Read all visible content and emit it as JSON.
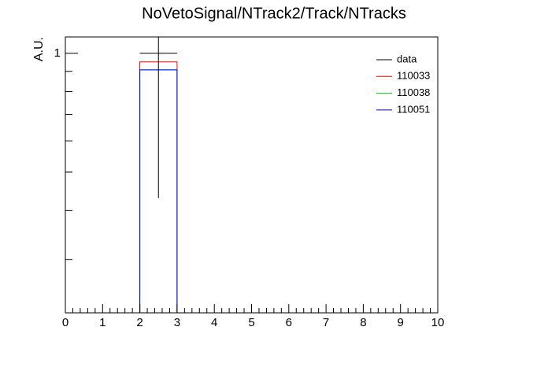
{
  "chart_data": {
    "type": "histogram",
    "title": "NoVetoSignal/NTrack2/Track/NTracks",
    "y_label": "A.U.",
    "bins": [
      2,
      3
    ],
    "series": [
      {
        "name": "data",
        "color": "#000000",
        "style": "errorbar",
        "values": [
          1
        ],
        "errors": [
          0.57
        ]
      },
      {
        "name": "110033",
        "color": "#ff0000",
        "style": "step",
        "values": [
          0.951
        ]
      },
      {
        "name": "110038",
        "color": "#00cc00",
        "style": "step",
        "values": [
          0.908
        ]
      },
      {
        "name": "110051",
        "color": "#0000ff",
        "style": "step",
        "values": [
          0.908
        ]
      }
    ],
    "xlim": [
      0,
      10
    ],
    "xticks": [
      0,
      1,
      2,
      3,
      4,
      5,
      6,
      7,
      8,
      9,
      10
    ],
    "xminor_step": 0.2,
    "ylim": [
      0.22,
      1.1
    ],
    "yticks": [
      1
    ],
    "yminorticks": [
      0.3,
      0.4,
      0.5,
      0.6,
      0.7,
      0.8,
      0.9
    ],
    "log_y": true,
    "grid": false,
    "legend": "top-right"
  }
}
